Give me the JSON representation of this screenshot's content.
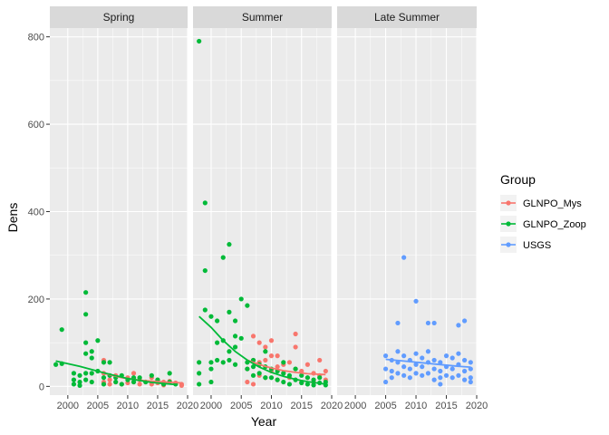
{
  "chart_data": {
    "type": "scatter",
    "xlabel": "Year",
    "ylabel": "Dens",
    "xlim": [
      1997,
      2020
    ],
    "ylim": [
      -20,
      820
    ],
    "x_ticks": [
      2000,
      2005,
      2010,
      2015,
      2020
    ],
    "y_ticks": [
      0,
      200,
      400,
      600,
      800
    ],
    "grid": true,
    "legend_position": "right",
    "legend_title": "Group",
    "series": [
      {
        "name": "GLNPO_Mys",
        "color": "#F8766D"
      },
      {
        "name": "GLNPO_Zoop",
        "color": "#00BA38"
      },
      {
        "name": "USGS",
        "color": "#619CFF"
      }
    ],
    "panels": [
      {
        "title": "Spring",
        "points": {
          "GLNPO_Zoop": [
            [
              1998,
              50
            ],
            [
              1999,
              130
            ],
            [
              1999,
              52
            ],
            [
              2001,
              30
            ],
            [
              2001,
              15
            ],
            [
              2001,
              5
            ],
            [
              2002,
              25
            ],
            [
              2002,
              10
            ],
            [
              2002,
              2
            ],
            [
              2003,
              215
            ],
            [
              2003,
              165
            ],
            [
              2003,
              100
            ],
            [
              2003,
              75
            ],
            [
              2003,
              30
            ],
            [
              2003,
              15
            ],
            [
              2004,
              80
            ],
            [
              2004,
              65
            ],
            [
              2004,
              30
            ],
            [
              2004,
              10
            ],
            [
              2005,
              105
            ],
            [
              2005,
              35
            ],
            [
              2006,
              55
            ],
            [
              2006,
              20
            ],
            [
              2006,
              5
            ],
            [
              2007,
              55
            ],
            [
              2007,
              25
            ],
            [
              2008,
              20
            ],
            [
              2008,
              10
            ],
            [
              2009,
              25
            ],
            [
              2009,
              5
            ],
            [
              2010,
              15
            ],
            [
              2011,
              20
            ],
            [
              2011,
              10
            ],
            [
              2012,
              20
            ],
            [
              2013,
              10
            ],
            [
              2014,
              25
            ],
            [
              2015,
              15
            ],
            [
              2016,
              5
            ],
            [
              2017,
              30
            ],
            [
              2017,
              10
            ],
            [
              2018,
              5
            ]
          ],
          "GLNPO_Mys": [
            [
              2006,
              60
            ],
            [
              2006,
              30
            ],
            [
              2006,
              10
            ],
            [
              2007,
              15
            ],
            [
              2007,
              5
            ],
            [
              2008,
              25
            ],
            [
              2008,
              10
            ],
            [
              2009,
              5
            ],
            [
              2010,
              20
            ],
            [
              2010,
              8
            ],
            [
              2011,
              30
            ],
            [
              2011,
              10
            ],
            [
              2012,
              15
            ],
            [
              2012,
              5
            ],
            [
              2013,
              10
            ],
            [
              2014,
              20
            ],
            [
              2014,
              5
            ],
            [
              2015,
              15
            ],
            [
              2015,
              8
            ],
            [
              2016,
              10
            ],
            [
              2016,
              3
            ],
            [
              2017,
              12
            ],
            [
              2018,
              8
            ],
            [
              2019,
              5
            ],
            [
              2019,
              2
            ]
          ]
        },
        "trends": {
          "GLNPO_Zoop": [
            [
              1998,
              58
            ],
            [
              2002,
              46
            ],
            [
              2006,
              31
            ],
            [
              2010,
              18
            ],
            [
              2014,
              9
            ],
            [
              2018,
              4
            ]
          ],
          "GLNPO_Mys": [
            [
              2006,
              30
            ],
            [
              2009,
              20
            ],
            [
              2012,
              14
            ],
            [
              2016,
              10
            ],
            [
              2019,
              8
            ]
          ]
        }
      },
      {
        "title": "Summer",
        "points": {
          "GLNPO_Zoop": [
            [
              1998,
              790
            ],
            [
              1998,
              55
            ],
            [
              1998,
              30
            ],
            [
              1998,
              5
            ],
            [
              1999,
              420
            ],
            [
              1999,
              265
            ],
            [
              1999,
              175
            ],
            [
              2000,
              160
            ],
            [
              2000,
              55
            ],
            [
              2000,
              40
            ],
            [
              2000,
              10
            ],
            [
              2001,
              150
            ],
            [
              2001,
              100
            ],
            [
              2001,
              60
            ],
            [
              2002,
              295
            ],
            [
              2002,
              105
            ],
            [
              2002,
              55
            ],
            [
              2003,
              325
            ],
            [
              2003,
              170
            ],
            [
              2003,
              80
            ],
            [
              2003,
              60
            ],
            [
              2004,
              150
            ],
            [
              2004,
              115
            ],
            [
              2004,
              90
            ],
            [
              2004,
              50
            ],
            [
              2005,
              200
            ],
            [
              2005,
              110
            ],
            [
              2006,
              185
            ],
            [
              2006,
              55
            ],
            [
              2006,
              40
            ],
            [
              2007,
              60
            ],
            [
              2007,
              45
            ],
            [
              2007,
              25
            ],
            [
              2008,
              50
            ],
            [
              2008,
              30
            ],
            [
              2009,
              80
            ],
            [
              2009,
              45
            ],
            [
              2009,
              20
            ],
            [
              2010,
              40
            ],
            [
              2010,
              20
            ],
            [
              2011,
              35
            ],
            [
              2011,
              15
            ],
            [
              2012,
              55
            ],
            [
              2012,
              30
            ],
            [
              2012,
              10
            ],
            [
              2013,
              25
            ],
            [
              2013,
              5
            ],
            [
              2014,
              40
            ],
            [
              2014,
              15
            ],
            [
              2015,
              25
            ],
            [
              2015,
              8
            ],
            [
              2016,
              20
            ],
            [
              2016,
              5
            ],
            [
              2017,
              15
            ],
            [
              2017,
              3
            ],
            [
              2018,
              20
            ],
            [
              2018,
              8
            ],
            [
              2019,
              10
            ],
            [
              2019,
              3
            ]
          ],
          "GLNPO_Mys": [
            [
              2006,
              10
            ],
            [
              2006,
              40
            ],
            [
              2007,
              115
            ],
            [
              2007,
              60
            ],
            [
              2007,
              5
            ],
            [
              2008,
              100
            ],
            [
              2008,
              55
            ],
            [
              2008,
              25
            ],
            [
              2009,
              90
            ],
            [
              2009,
              60
            ],
            [
              2009,
              20
            ],
            [
              2010,
              105
            ],
            [
              2010,
              70
            ],
            [
              2010,
              35
            ],
            [
              2011,
              70
            ],
            [
              2011,
              45
            ],
            [
              2011,
              15
            ],
            [
              2012,
              50
            ],
            [
              2012,
              30
            ],
            [
              2013,
              55
            ],
            [
              2013,
              20
            ],
            [
              2014,
              120
            ],
            [
              2014,
              90
            ],
            [
              2014,
              40
            ],
            [
              2015,
              35
            ],
            [
              2015,
              10
            ],
            [
              2016,
              50
            ],
            [
              2016,
              20
            ],
            [
              2017,
              30
            ],
            [
              2017,
              10
            ],
            [
              2018,
              60
            ],
            [
              2018,
              25
            ],
            [
              2019,
              35
            ],
            [
              2019,
              15
            ]
          ]
        },
        "trends": {
          "GLNPO_Zoop": [
            [
              1998,
              160
            ],
            [
              2000,
              135
            ],
            [
              2002,
              105
            ],
            [
              2004,
              80
            ],
            [
              2006,
              60
            ],
            [
              2008,
              44
            ],
            [
              2010,
              32
            ],
            [
              2012,
              23
            ],
            [
              2014,
              16
            ],
            [
              2016,
              11
            ],
            [
              2019,
              5
            ]
          ],
          "GLNPO_Mys": [
            [
              2006,
              60
            ],
            [
              2008,
              50
            ],
            [
              2010,
              42
            ],
            [
              2012,
              36
            ],
            [
              2014,
              32
            ],
            [
              2016,
              29
            ],
            [
              2019,
              27
            ]
          ]
        }
      },
      {
        "title": "Late Summer",
        "points": {
          "USGS": [
            [
              2005,
              70
            ],
            [
              2005,
              40
            ],
            [
              2005,
              10
            ],
            [
              2006,
              60
            ],
            [
              2006,
              35
            ],
            [
              2006,
              20
            ],
            [
              2007,
              145
            ],
            [
              2007,
              80
            ],
            [
              2007,
              55
            ],
            [
              2007,
              30
            ],
            [
              2008,
              295
            ],
            [
              2008,
              70
            ],
            [
              2008,
              45
            ],
            [
              2008,
              25
            ],
            [
              2009,
              60
            ],
            [
              2009,
              40
            ],
            [
              2009,
              20
            ],
            [
              2010,
              195
            ],
            [
              2010,
              75
            ],
            [
              2010,
              50
            ],
            [
              2010,
              30
            ],
            [
              2011,
              65
            ],
            [
              2011,
              45
            ],
            [
              2011,
              25
            ],
            [
              2012,
              145
            ],
            [
              2012,
              80
            ],
            [
              2012,
              55
            ],
            [
              2012,
              30
            ],
            [
              2013,
              145
            ],
            [
              2013,
              60
            ],
            [
              2013,
              40
            ],
            [
              2013,
              15
            ],
            [
              2014,
              55
            ],
            [
              2014,
              35
            ],
            [
              2014,
              20
            ],
            [
              2014,
              5
            ],
            [
              2015,
              70
            ],
            [
              2015,
              45
            ],
            [
              2015,
              25
            ],
            [
              2016,
              65
            ],
            [
              2016,
              40
            ],
            [
              2016,
              20
            ],
            [
              2017,
              140
            ],
            [
              2017,
              75
            ],
            [
              2017,
              50
            ],
            [
              2017,
              25
            ],
            [
              2018,
              150
            ],
            [
              2018,
              60
            ],
            [
              2018,
              35
            ],
            [
              2018,
              15
            ],
            [
              2019,
              55
            ],
            [
              2019,
              40
            ],
            [
              2019,
              20
            ],
            [
              2019,
              10
            ]
          ]
        },
        "trends": {
          "USGS": [
            [
              2005,
              62
            ],
            [
              2008,
              58
            ],
            [
              2011,
              54
            ],
            [
              2014,
              50
            ],
            [
              2017,
              46
            ],
            [
              2019,
              44
            ]
          ]
        }
      }
    ]
  }
}
